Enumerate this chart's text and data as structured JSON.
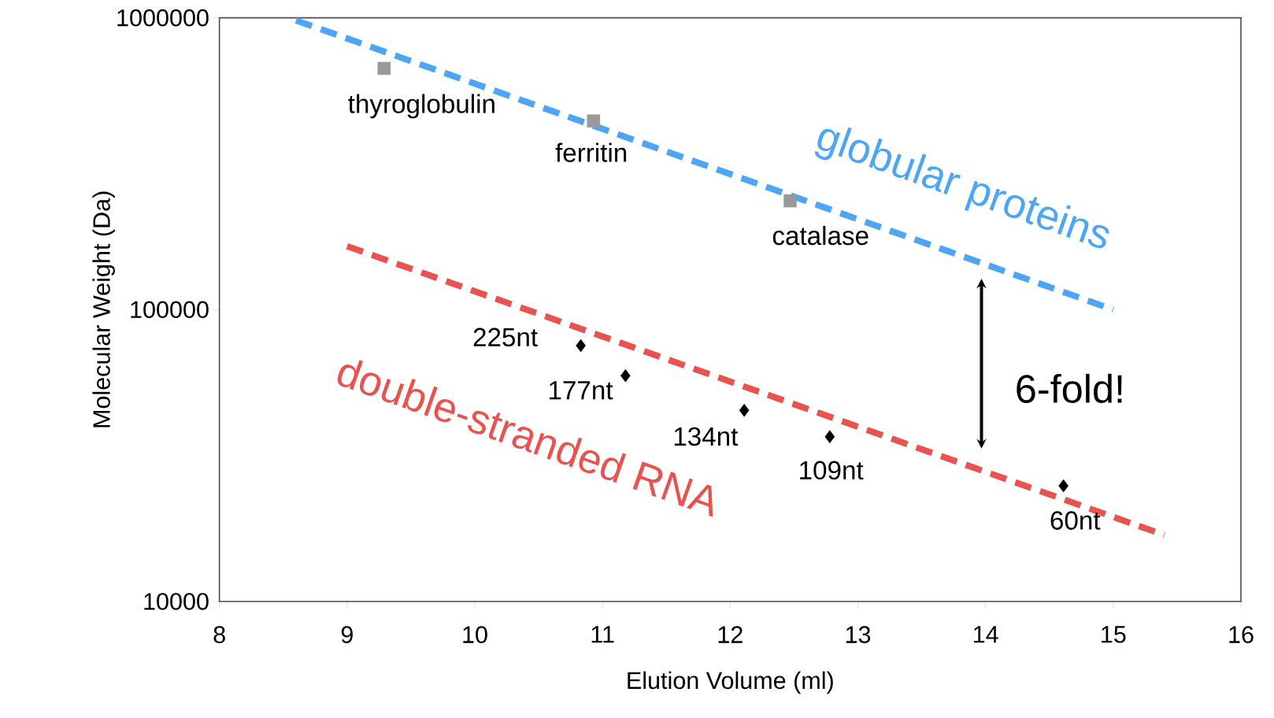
{
  "chart_data": {
    "type": "scatter",
    "xlabel": "Elution Volume (ml)",
    "ylabel": "Molecular Weight (Da)",
    "xlim": [
      8,
      16
    ],
    "xticks": [
      8,
      9,
      10,
      11,
      12,
      13,
      14,
      15,
      16
    ],
    "ylim": [
      10000,
      1000000
    ],
    "yticks": [
      10000,
      100000,
      1000000
    ],
    "log": "y",
    "series": [
      {
        "type": "line",
        "name": "globular proteins",
        "color": "#4da6f5",
        "line_style": "dashed",
        "marker": "none",
        "x": [
          8.6,
          15.0
        ],
        "values": [
          980000,
          100000
        ]
      },
      {
        "type": "line",
        "name": "double-stranded RNA",
        "color": "#e8524f",
        "line_style": "dashed",
        "marker": "none",
        "x": [
          9.0,
          15.4
        ],
        "values": [
          165000,
          16900
        ]
      },
      {
        "color": "#999999",
        "marker": "square",
        "x": [
          9.29,
          10.93,
          12.47
        ],
        "values": [
          671000,
          443000,
          236000
        ]
      },
      {
        "color": "#000000",
        "marker": "diamond",
        "x": [
          10.83,
          11.18,
          12.11,
          12.78,
          14.61
        ],
        "values": [
          75300,
          59400,
          45200,
          36700,
          24900
        ]
      }
    ],
    "annotations": [
      {
        "text": "thyroglobulin",
        "x": 9.29,
        "y": 671000
      },
      {
        "text": "ferritin",
        "x": 10.93,
        "y": 443000
      },
      {
        "text": "catalase",
        "x": 12.47,
        "y": 236000
      },
      {
        "text": "225nt",
        "x": 10.83,
        "y": 75300
      },
      {
        "text": "177nt",
        "x": 11.18,
        "y": 59400
      },
      {
        "text": "134nt",
        "x": 12.11,
        "y": 45200
      },
      {
        "text": "109nt",
        "x": 12.78,
        "y": 36700
      },
      {
        "text": "60nt",
        "x": 14.61,
        "y": 24900
      },
      "6-fold!"
    ]
  }
}
